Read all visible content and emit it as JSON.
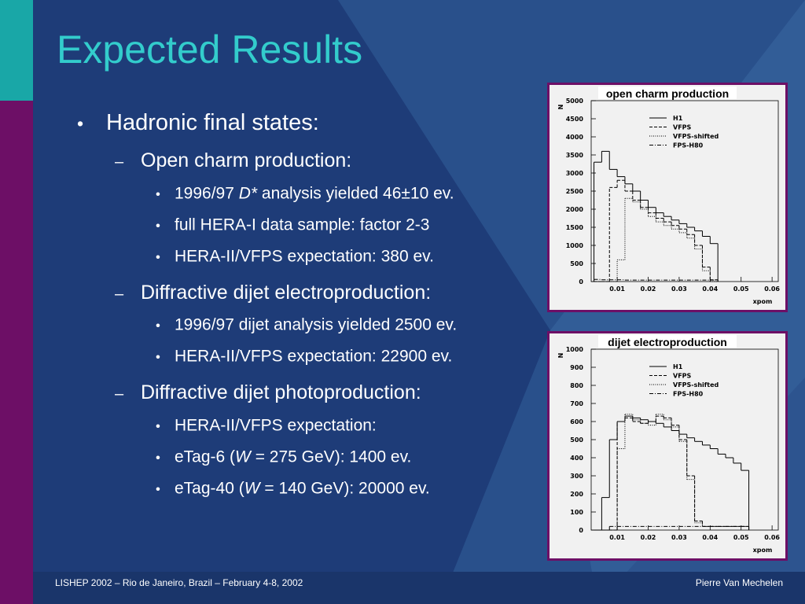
{
  "slide": {
    "title": "Expected Results",
    "bullets": [
      {
        "level": 1,
        "parts": [
          {
            "text": "Hadronic final states:"
          }
        ]
      },
      {
        "level": 2,
        "parts": [
          {
            "text": "Open charm production:"
          }
        ]
      },
      {
        "level": 3,
        "parts": [
          {
            "text": "1996/97 "
          },
          {
            "text": "D*",
            "italic": true
          },
          {
            "text": " analysis yielded 46±10 ev."
          }
        ]
      },
      {
        "level": 3,
        "parts": [
          {
            "text": "full HERA-I data sample: factor 2-3"
          }
        ]
      },
      {
        "level": 3,
        "parts": [
          {
            "text": "HERA-II/VFPS expectation: 380 ev."
          }
        ]
      },
      {
        "level": 2,
        "parts": [
          {
            "text": "Diffractive dijet electroproduction:"
          }
        ]
      },
      {
        "level": 3,
        "parts": [
          {
            "text": "1996/97 dijet analysis yielded 2500 ev."
          }
        ]
      },
      {
        "level": 3,
        "parts": [
          {
            "text": "HERA-II/VFPS expectation: 22900 ev."
          }
        ]
      },
      {
        "level": 2,
        "parts": [
          {
            "text": "Diffractive dijet photoproduction:"
          }
        ]
      },
      {
        "level": 3,
        "parts": [
          {
            "text": "HERA-II/VFPS expectation:"
          }
        ]
      },
      {
        "level": 3,
        "parts": [
          {
            "text": "eTag-6 ("
          },
          {
            "text": "W",
            "italic": true
          },
          {
            "text": " = 275 GeV): 1400 ev."
          }
        ]
      },
      {
        "level": 3,
        "parts": [
          {
            "text": "eTag-40 ("
          },
          {
            "text": "W",
            "italic": true
          },
          {
            "text": " = 140 GeV): 20000 ev."
          }
        ]
      }
    ],
    "footer_left": "LISHEP 2002 – Rio de Janeiro, Brazil – February 4-8, 2002",
    "footer_right": "Pierre Van Mechelen"
  },
  "chart_data": [
    {
      "type": "histogram",
      "title": "open charm production",
      "y_label": "N",
      "x_label": "xpom",
      "xlim": [
        0.0016,
        0.062
      ],
      "ylim": [
        0,
        5000
      ],
      "xticks": [
        0.01,
        0.02,
        0.03,
        0.04,
        0.05,
        0.06
      ],
      "yticks": [
        0,
        500,
        1000,
        1500,
        2000,
        2500,
        3000,
        3500,
        4000,
        4500,
        5000
      ],
      "legend": "upper right",
      "bins": [
        0.0025,
        0.005,
        0.0075,
        0.01,
        0.0125,
        0.015,
        0.0175,
        0.02,
        0.0225,
        0.025,
        0.0275,
        0.03,
        0.0325,
        0.035,
        0.0375,
        0.04,
        0.0425
      ],
      "series": [
        {
          "name": "H1",
          "color": "#000000",
          "linestyle": "solid",
          "values": [
            3300,
            3600,
            3100,
            2900,
            2700,
            2500,
            2250,
            2050,
            1900,
            1800,
            1700,
            1600,
            1500,
            1400,
            1250,
            1050
          ]
        },
        {
          "name": "VFPS",
          "color": "#000000",
          "linestyle": "dashed",
          "values": [
            0,
            0,
            2600,
            2800,
            2500,
            2250,
            2050,
            1900,
            1750,
            1650,
            1550,
            1450,
            1300,
            1000,
            400,
            50
          ]
        },
        {
          "name": "VFPS-shifted",
          "color": "#000000",
          "linestyle": "dotted",
          "values": [
            0,
            0,
            0,
            600,
            2300,
            2200,
            2000,
            1800,
            1650,
            1550,
            1450,
            1350,
            1200,
            900,
            300,
            0
          ]
        },
        {
          "name": "FPS-H80",
          "color": "#000000",
          "linestyle": "dashdot",
          "values": [
            60,
            50,
            50,
            50,
            40,
            40,
            40,
            40,
            40,
            40,
            40,
            40,
            40,
            40,
            40,
            40
          ]
        }
      ]
    },
    {
      "type": "histogram",
      "title": "dijet electroproduction",
      "y_label": "N",
      "x_label": "xpom",
      "xlim": [
        0.0016,
        0.062
      ],
      "ylim": [
        0,
        1000
      ],
      "xticks": [
        0.01,
        0.02,
        0.03,
        0.04,
        0.05,
        0.06
      ],
      "yticks": [
        0,
        100,
        200,
        300,
        400,
        500,
        600,
        700,
        800,
        900,
        1000
      ],
      "legend": "upper right",
      "bins": [
        0.0025,
        0.005,
        0.0075,
        0.01,
        0.0125,
        0.015,
        0.0175,
        0.02,
        0.0225,
        0.025,
        0.0275,
        0.03,
        0.0325,
        0.035,
        0.0375,
        0.04,
        0.0425,
        0.045,
        0.0475,
        0.05,
        0.0525
      ],
      "series": [
        {
          "name": "H1",
          "color": "#000000",
          "linestyle": "solid",
          "values": [
            0,
            180,
            500,
            600,
            630,
            620,
            610,
            600,
            590,
            570,
            550,
            530,
            510,
            490,
            470,
            450,
            420,
            400,
            370,
            330
          ]
        },
        {
          "name": "VFPS",
          "color": "#000000",
          "linestyle": "dashed",
          "values": [
            0,
            0,
            0,
            600,
            620,
            600,
            590,
            600,
            630,
            620,
            580,
            500,
            300,
            50,
            20,
            20,
            20,
            20,
            20,
            20
          ]
        },
        {
          "name": "VFPS-shifted",
          "color": "#000000",
          "linestyle": "dotted",
          "values": [
            0,
            0,
            0,
            450,
            640,
            610,
            590,
            580,
            640,
            610,
            570,
            490,
            280,
            40,
            20,
            20,
            20,
            20,
            20,
            20
          ]
        },
        {
          "name": "FPS-H80",
          "color": "#000000",
          "linestyle": "dashdot",
          "values": [
            0,
            0,
            20,
            20,
            20,
            20,
            20,
            20,
            20,
            20,
            20,
            20,
            20,
            20,
            20,
            20,
            20,
            20,
            20,
            20
          ]
        }
      ]
    }
  ]
}
